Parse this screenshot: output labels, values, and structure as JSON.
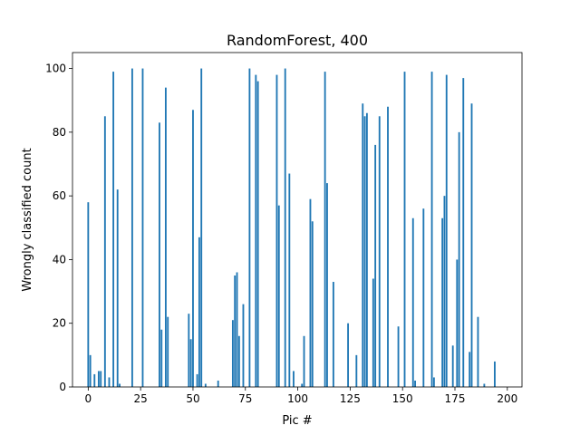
{
  "chart_data": {
    "type": "bar",
    "title": "RandomForest, 400",
    "xlabel": "Pic #",
    "ylabel": "Wrongly classified count",
    "xlim": [
      -7.5,
      207
    ],
    "ylim": [
      0,
      105
    ],
    "xticks": [
      0,
      25,
      50,
      75,
      100,
      125,
      150,
      175,
      200
    ],
    "yticks": [
      0,
      20,
      40,
      60,
      80,
      100
    ],
    "grid": false,
    "bar_color": "#1f77b4",
    "x": [
      0,
      1,
      3,
      5,
      6,
      8,
      10,
      12,
      14,
      15,
      21,
      26,
      34,
      35,
      37,
      38,
      48,
      49,
      50,
      52,
      53,
      54,
      56,
      62,
      69,
      70,
      71,
      72,
      74,
      77,
      80,
      81,
      90,
      91,
      94,
      96,
      98,
      102,
      103,
      106,
      107,
      113,
      114,
      117,
      124,
      128,
      131,
      132,
      133,
      136,
      137,
      139,
      143,
      148,
      151,
      155,
      156,
      160,
      164,
      165,
      169,
      170,
      171,
      174,
      176,
      177,
      179,
      182,
      183,
      186,
      189,
      194
    ],
    "values": [
      58,
      10,
      4,
      5,
      5,
      85,
      3,
      99,
      62,
      1,
      100,
      100,
      83,
      18,
      94,
      22,
      23,
      15,
      87,
      4,
      47,
      100,
      1,
      2,
      21,
      35,
      36,
      16,
      26,
      100,
      98,
      96,
      98,
      57,
      100,
      67,
      5,
      1,
      16,
      59,
      52,
      99,
      64,
      33,
      20,
      10,
      89,
      85,
      86,
      34,
      76,
      85,
      88,
      19,
      99,
      53,
      2,
      56,
      99,
      3,
      53,
      60,
      98,
      13,
      40,
      80,
      97,
      11,
      89,
      22,
      1,
      8
    ]
  }
}
